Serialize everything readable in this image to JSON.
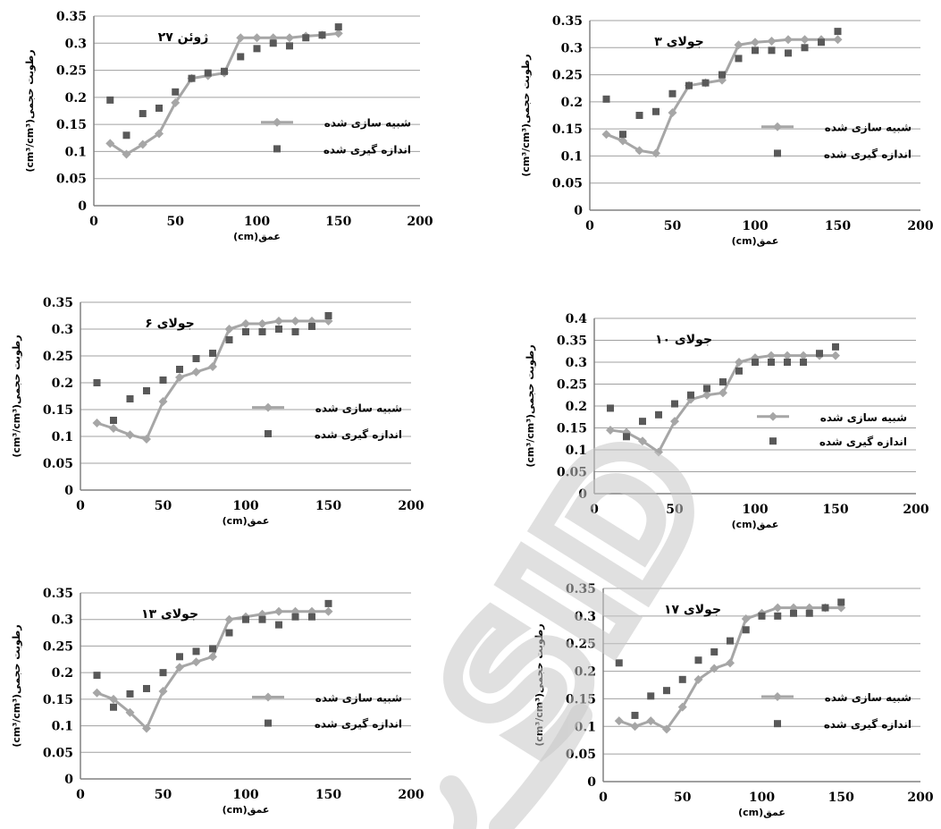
{
  "watermark": {
    "text": "SID",
    "color": "#cfcfcf"
  },
  "colors": {
    "simulated": "#a6a6a6",
    "measured": "#595959",
    "grid": "#a0a0a0",
    "axis": "#808080"
  },
  "chart_data": [
    {
      "type": "line",
      "title": "۲۷ ژوئن",
      "xlabel": "(cm)عمق",
      "ylabel": "(cm³/cm³)رطوبت حجمی",
      "xlim": [
        0,
        200
      ],
      "ylim": [
        0,
        0.35
      ],
      "x_ticks": [
        "0",
        "50",
        "100",
        "150",
        "200"
      ],
      "y_ticks": [
        "0",
        "0.05",
        "0.1",
        "0.15",
        "0.2",
        "0.25",
        "0.3",
        "0.35"
      ],
      "legend_position": "right",
      "series": [
        {
          "name": "شبیه سازی شده",
          "style": "line-diamond",
          "x": [
            10,
            20,
            30,
            40,
            50,
            60,
            70,
            80,
            90,
            100,
            110,
            120,
            130,
            140,
            150
          ],
          "y": [
            0.115,
            0.095,
            0.113,
            0.133,
            0.19,
            0.235,
            0.24,
            0.245,
            0.31,
            0.31,
            0.31,
            0.31,
            0.313,
            0.315,
            0.318
          ]
        },
        {
          "name": "اندازه گیری شده",
          "style": "square",
          "x": [
            10,
            20,
            30,
            40,
            50,
            60,
            70,
            80,
            90,
            100,
            110,
            120,
            130,
            140,
            150
          ],
          "y": [
            0.195,
            0.13,
            0.17,
            0.18,
            0.21,
            0.235,
            0.245,
            0.248,
            0.275,
            0.29,
            0.3,
            0.295,
            0.31,
            0.315,
            0.33
          ]
        }
      ]
    },
    {
      "type": "line",
      "title": "۳ جولای",
      "xlabel": "(cm)عمق",
      "ylabel": "(cm³/cm³)رطوبت حجمی",
      "xlim": [
        0,
        200
      ],
      "ylim": [
        0,
        0.35
      ],
      "x_ticks": [
        "0",
        "50",
        "100",
        "150",
        "200"
      ],
      "y_ticks": [
        "0",
        "0.05",
        "0.1",
        "0.15",
        "0.2",
        "0.25",
        "0.3",
        "0.35"
      ],
      "legend_position": "right",
      "series": [
        {
          "name": "شبیه سازی شده",
          "style": "line-diamond",
          "x": [
            10,
            20,
            30,
            40,
            50,
            60,
            70,
            80,
            90,
            100,
            110,
            120,
            130,
            140,
            150
          ],
          "y": [
            0.14,
            0.128,
            0.11,
            0.105,
            0.18,
            0.23,
            0.235,
            0.24,
            0.305,
            0.31,
            0.312,
            0.315,
            0.315,
            0.315,
            0.315
          ]
        },
        {
          "name": "اندازه گیری شده",
          "style": "square",
          "x": [
            10,
            20,
            30,
            40,
            50,
            60,
            70,
            80,
            90,
            100,
            110,
            120,
            130,
            140,
            150
          ],
          "y": [
            0.205,
            0.14,
            0.175,
            0.182,
            0.215,
            0.23,
            0.235,
            0.25,
            0.28,
            0.295,
            0.295,
            0.29,
            0.3,
            0.31,
            0.33
          ]
        }
      ]
    },
    {
      "type": "line",
      "title": "۶ جولای",
      "xlabel": "(cm)عمق",
      "ylabel": "(cm³/cm³)رطوبت حجمی",
      "xlim": [
        0,
        200
      ],
      "ylim": [
        0,
        0.35
      ],
      "x_ticks": [
        "0",
        "50",
        "100",
        "150",
        "200"
      ],
      "y_ticks": [
        "0",
        "0.05",
        "0.1",
        "0.15",
        "0.2",
        "0.25",
        "0.3",
        "0.35"
      ],
      "legend_position": "right",
      "series": [
        {
          "name": "شبیه سازی شده",
          "style": "line-diamond",
          "x": [
            10,
            20,
            30,
            40,
            50,
            60,
            70,
            80,
            90,
            100,
            110,
            120,
            130,
            140,
            150
          ],
          "y": [
            0.125,
            0.115,
            0.103,
            0.095,
            0.165,
            0.21,
            0.22,
            0.23,
            0.3,
            0.31,
            0.31,
            0.315,
            0.315,
            0.315,
            0.315
          ]
        },
        {
          "name": "اندازه گیری شده",
          "style": "square",
          "x": [
            10,
            20,
            30,
            40,
            50,
            60,
            70,
            80,
            90,
            100,
            110,
            120,
            130,
            140,
            150
          ],
          "y": [
            0.2,
            0.13,
            0.17,
            0.185,
            0.205,
            0.225,
            0.245,
            0.255,
            0.28,
            0.295,
            0.295,
            0.3,
            0.295,
            0.305,
            0.325
          ]
        }
      ]
    },
    {
      "type": "line",
      "title": "۱۰ جولای",
      "xlabel": "(cm)عمق",
      "ylabel": "(cm³/cm³)رطوبت حجمی",
      "xlim": [
        0,
        200
      ],
      "ylim": [
        0,
        0.4
      ],
      "x_ticks": [
        "0",
        "50",
        "100",
        "150",
        "200"
      ],
      "y_ticks": [
        "0",
        "0.05",
        "0.1",
        "0.15",
        "0.2",
        "0.25",
        "0.3",
        "0.35",
        "0.4"
      ],
      "legend_position": "right",
      "series": [
        {
          "name": "شبیه سازی شده",
          "style": "line-diamond",
          "x": [
            10,
            20,
            30,
            40,
            50,
            60,
            70,
            80,
            90,
            100,
            110,
            120,
            130,
            140,
            150
          ],
          "y": [
            0.145,
            0.14,
            0.12,
            0.095,
            0.165,
            0.215,
            0.225,
            0.23,
            0.3,
            0.31,
            0.315,
            0.315,
            0.315,
            0.315,
            0.315
          ]
        },
        {
          "name": "اندازه گیری شده",
          "style": "square",
          "x": [
            10,
            20,
            30,
            40,
            50,
            60,
            70,
            80,
            90,
            100,
            110,
            120,
            130,
            140,
            150
          ],
          "y": [
            0.195,
            0.13,
            0.165,
            0.18,
            0.205,
            0.225,
            0.24,
            0.255,
            0.28,
            0.3,
            0.3,
            0.3,
            0.3,
            0.32,
            0.335
          ]
        }
      ]
    },
    {
      "type": "line",
      "title": "۱۳ جولای",
      "xlabel": "(cm)عمق",
      "ylabel": "(cm³/cm³)رطوبت حجمی",
      "xlim": [
        0,
        200
      ],
      "ylim": [
        0,
        0.35
      ],
      "x_ticks": [
        "0",
        "50",
        "100",
        "150",
        "200"
      ],
      "y_ticks": [
        "0",
        "0.05",
        "0.1",
        "0.15",
        "0.2",
        "0.25",
        "0.3",
        "0.35"
      ],
      "legend_position": "right",
      "series": [
        {
          "name": "شبیه سازی شده",
          "style": "line-diamond",
          "x": [
            10,
            20,
            30,
            40,
            50,
            60,
            70,
            80,
            90,
            100,
            110,
            120,
            130,
            140,
            150
          ],
          "y": [
            0.162,
            0.15,
            0.125,
            0.095,
            0.165,
            0.21,
            0.22,
            0.23,
            0.3,
            0.305,
            0.31,
            0.315,
            0.315,
            0.315,
            0.315
          ]
        },
        {
          "name": "اندازه گیری شده",
          "style": "square",
          "x": [
            10,
            20,
            30,
            40,
            50,
            60,
            70,
            80,
            90,
            100,
            110,
            120,
            130,
            140,
            150
          ],
          "y": [
            0.195,
            0.135,
            0.16,
            0.17,
            0.2,
            0.23,
            0.24,
            0.245,
            0.275,
            0.3,
            0.3,
            0.29,
            0.305,
            0.305,
            0.33
          ]
        }
      ]
    },
    {
      "type": "line",
      "title": "۱۷ جولای",
      "xlabel": "(cm)عمق",
      "ylabel": "(cm³/cm³)رطوبت حجمی",
      "xlim": [
        0,
        200
      ],
      "ylim": [
        0,
        0.35
      ],
      "x_ticks": [
        "0",
        "50",
        "100",
        "150",
        "200"
      ],
      "y_ticks": [
        "0",
        "0.05",
        "0.1",
        "0.15",
        "0.2",
        "0.25",
        "0.3",
        "0.35"
      ],
      "legend_position": "right",
      "series": [
        {
          "name": "شبیه سازی شده",
          "style": "line-diamond",
          "x": [
            10,
            20,
            30,
            40,
            50,
            60,
            70,
            80,
            90,
            100,
            110,
            120,
            130,
            140,
            150
          ],
          "y": [
            0.11,
            0.1,
            0.11,
            0.095,
            0.135,
            0.185,
            0.205,
            0.215,
            0.295,
            0.305,
            0.315,
            0.315,
            0.315,
            0.315,
            0.315
          ]
        },
        {
          "name": "اندازه گیری شده",
          "style": "square",
          "x": [
            10,
            20,
            30,
            40,
            50,
            60,
            70,
            80,
            90,
            100,
            110,
            120,
            130,
            140,
            150
          ],
          "y": [
            0.215,
            0.12,
            0.155,
            0.165,
            0.185,
            0.22,
            0.235,
            0.255,
            0.275,
            0.3,
            0.3,
            0.305,
            0.305,
            0.315,
            0.325
          ]
        }
      ]
    }
  ]
}
